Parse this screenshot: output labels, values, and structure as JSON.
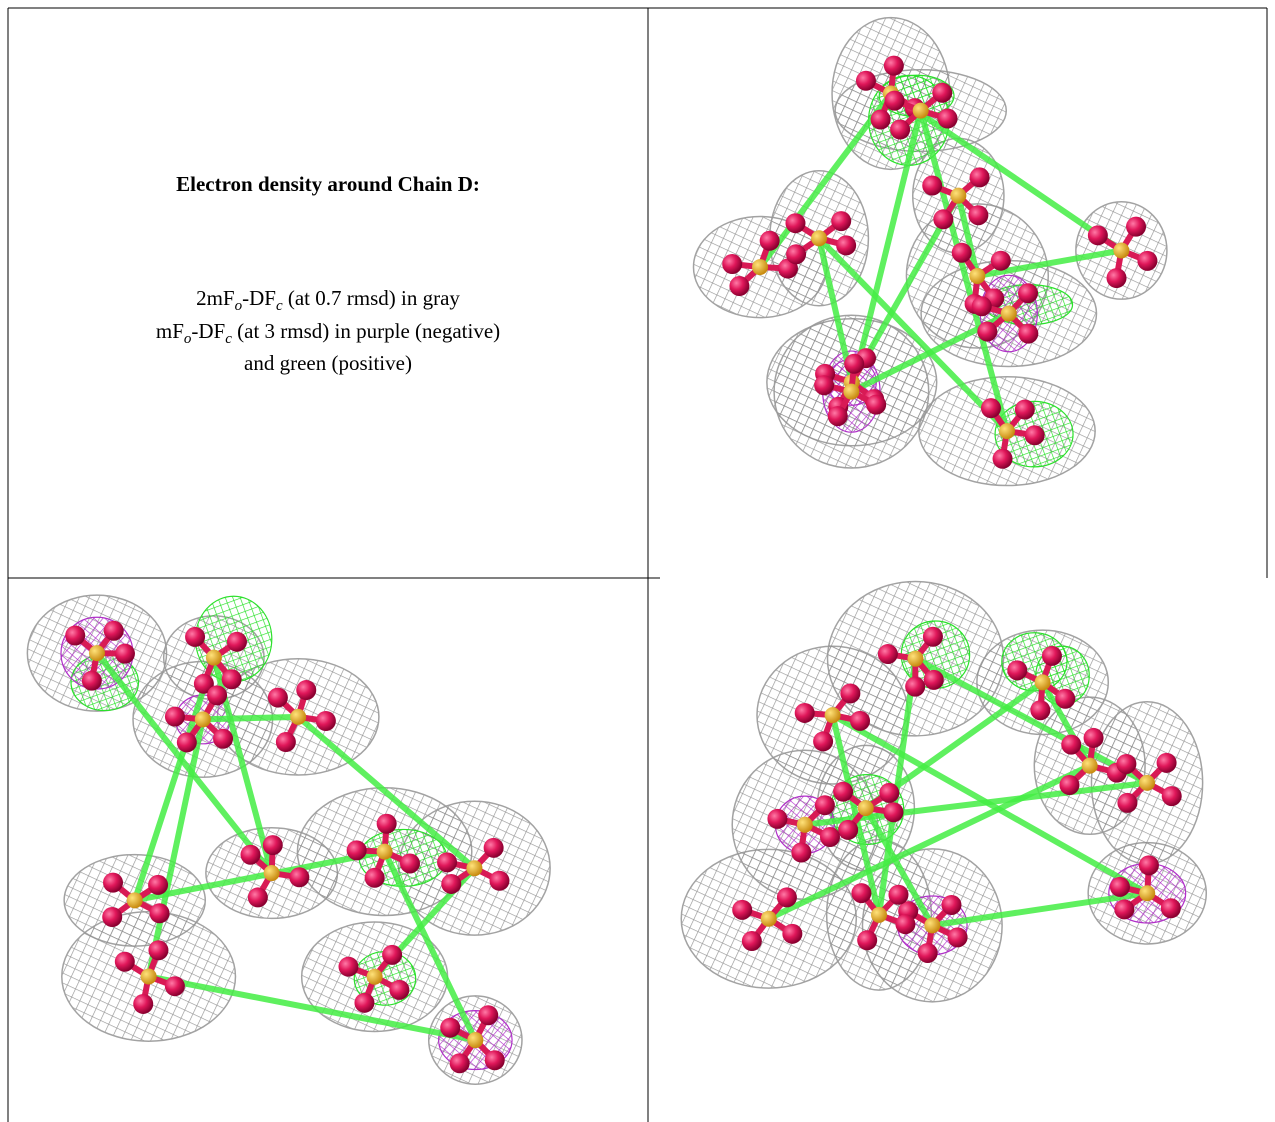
{
  "header": {
    "title": "Electron density around Chain D:"
  },
  "legend": {
    "lines": [
      [
        "2mF",
        "o",
        "-DF",
        "c",
        " (at 0.7 rmsd) in gray"
      ],
      [
        "mF",
        "o",
        "-DF",
        "c",
        " (at 3 rmsd) in purple (negative)"
      ],
      [
        "and green (positive)"
      ]
    ]
  }
}
